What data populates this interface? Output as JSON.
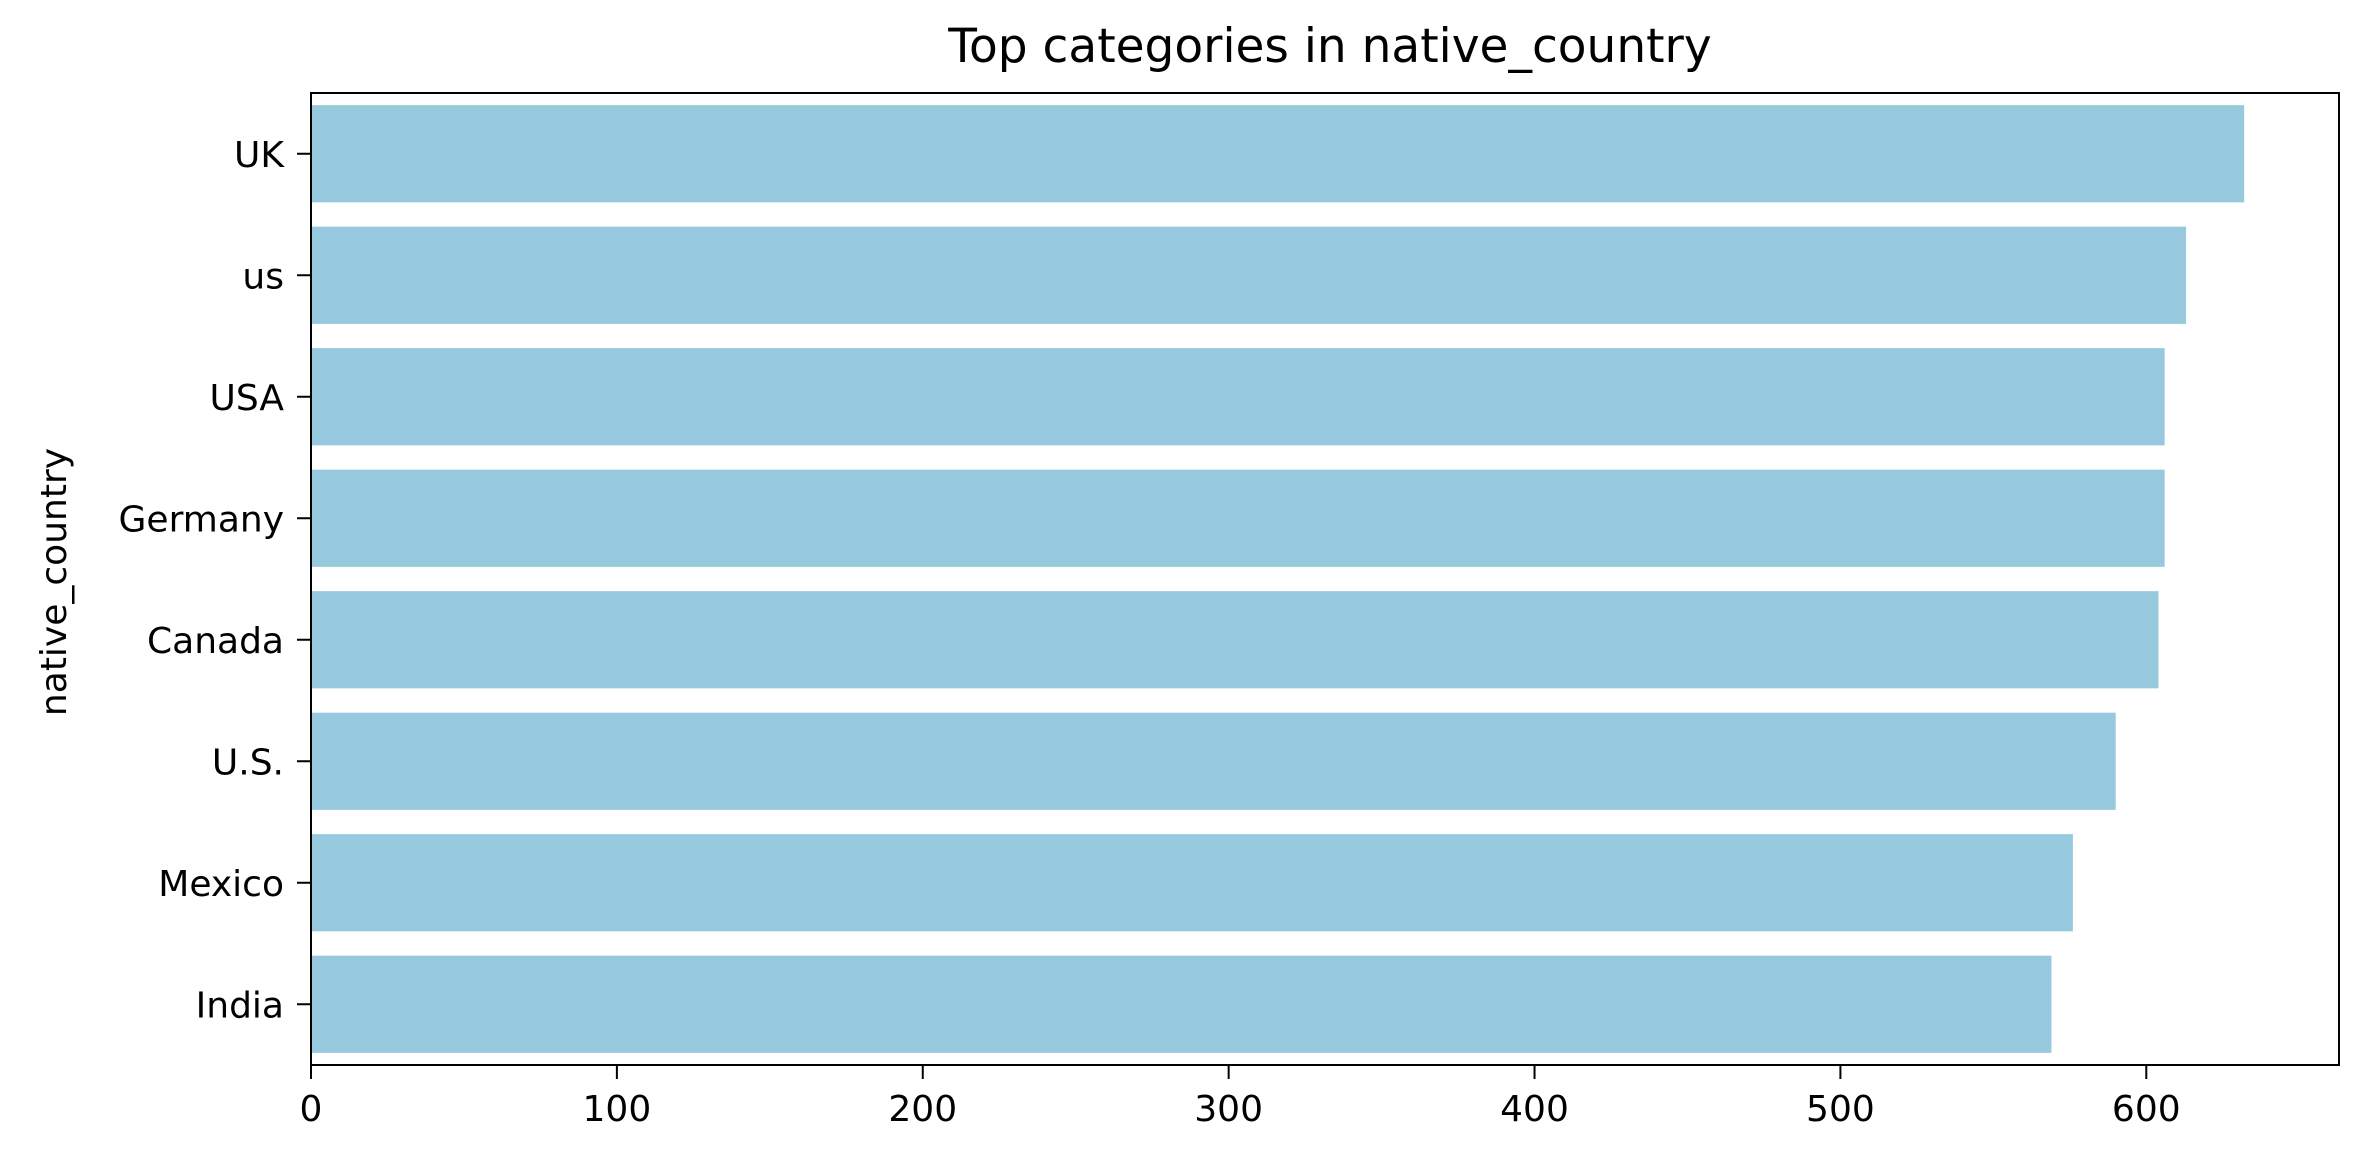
{
  "chart_data": {
    "type": "bar",
    "orientation": "horizontal",
    "title": "Top categories in native_country",
    "xlabel": "",
    "ylabel": "native_country",
    "categories": [
      "UK",
      "us",
      "USA",
      "Germany",
      "Canada",
      "U.S.",
      "Mexico",
      "India"
    ],
    "values": [
      632,
      613,
      606,
      606,
      604,
      590,
      576,
      569
    ],
    "xlim": [
      0,
      663
    ],
    "xticks": [
      0,
      100,
      200,
      300,
      400,
      500,
      600
    ],
    "xtick_labels": [
      "0",
      "100",
      "200",
      "300",
      "400",
      "500",
      "600"
    ],
    "grid": false,
    "legend": "none",
    "bar_color": "#97c9de"
  }
}
